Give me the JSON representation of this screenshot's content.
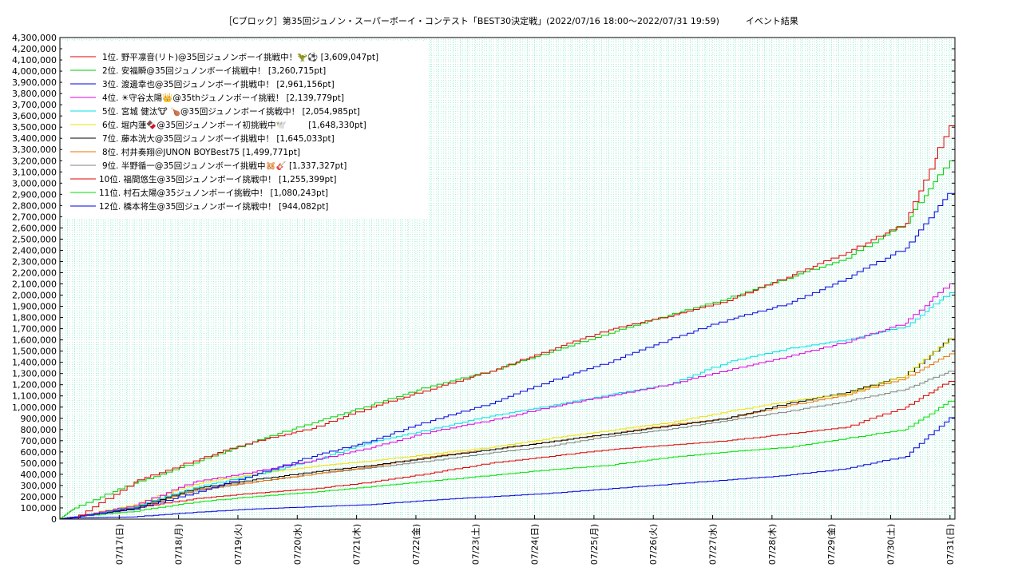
{
  "chart_data": {
    "type": "line",
    "title": "［Cブロック］第35回ジュノン・スーパーボーイ・コンテスト「BEST30決定戦」(2022/07/16 18:00〜2022/07/31 19:59)　　　イベント結果",
    "xlabel": "",
    "ylabel": "",
    "x_ticks": [
      "07/17(日)",
      "07/18(月)",
      "07/19(火)",
      "07/20(水)",
      "07/21(木)",
      "07/22(金)",
      "07/23(土)",
      "07/24(日)",
      "07/25(月)",
      "07/26(火)",
      "07/27(水)",
      "07/28(木)",
      "07/29(金)",
      "07/30(土)",
      "07/31(日)"
    ],
    "y_ticks": [
      "0",
      "100,000",
      "200,000",
      "300,000",
      "400,000",
      "500,000",
      "600,000",
      "700,000",
      "800,000",
      "900,000",
      "1,000,000",
      "1,100,000",
      "1,200,000",
      "1,300,000",
      "1,400,000",
      "1,500,000",
      "1,600,000",
      "1,700,000",
      "1,800,000",
      "1,900,000",
      "2,000,000",
      "2,100,000",
      "2,200,000",
      "2,300,000",
      "2,400,000",
      "2,500,000",
      "2,600,000",
      "2,700,000",
      "2,800,000",
      "2,900,000",
      "3,000,000",
      "3,100,000",
      "3,200,000",
      "3,300,000",
      "3,400,000",
      "3,500,000",
      "3,600,000",
      "3,700,000",
      "3,800,000",
      "3,900,000",
      "4,000,000",
      "4,100,000",
      "4,200,000",
      "4,300,000"
    ],
    "ylim": [
      0,
      4300000
    ],
    "grid": true,
    "legend_position": "top-left",
    "x_days": [
      0.25,
      1.25,
      2.25,
      3.25,
      4.25,
      5.25,
      6.25,
      7.25,
      8.25,
      9.25,
      10.25,
      11.25,
      12.25,
      13.25,
      14.25,
      15.083
    ],
    "series": [
      {
        "name": "1位. 野平凛音(リト)@35回ジュノンボーイ挑戦中！🦖⚽ [3,609,047pt]",
        "color": "#e00000",
        "values": [
          0,
          330000,
          520000,
          690000,
          810000,
          1000000,
          1160000,
          1320000,
          1510000,
          1690000,
          1810000,
          1950000,
          2160000,
          2380000,
          2640000,
          3609047
        ]
      },
      {
        "name": "2位. 安福瞬@35回ジュノンボーイ挑戦中！ [3,260,715pt]",
        "color": "#00cc00",
        "values": [
          100000,
          320000,
          500000,
          690000,
          860000,
          1020000,
          1190000,
          1320000,
          1490000,
          1660000,
          1820000,
          1970000,
          2150000,
          2330000,
          2640000,
          3260715
        ]
      },
      {
        "name": "3位. 渡邊幸也@35回ジュノンボーイ挑戦中！ [2,961,156pt]",
        "color": "#0000e0",
        "values": [
          20000,
          90000,
          230000,
          390000,
          560000,
          700000,
          880000,
          1030000,
          1230000,
          1400000,
          1600000,
          1780000,
          1920000,
          2150000,
          2420000,
          2961156
        ]
      },
      {
        "name": "4位. ☀守谷太陽👑@35thジュノンボーイ挑戦！ [2,139,779pt]",
        "color": "#e000e0",
        "values": [
          20000,
          120000,
          330000,
          420000,
          520000,
          640000,
          780000,
          880000,
          1000000,
          1100000,
          1200000,
          1330000,
          1450000,
          1580000,
          1750000,
          2139779
        ]
      },
      {
        "name": "5位. 宮城 健汰🐮 🍗@35回ジュノンボーイ挑戦中！ [2,054,985pt]",
        "color": "#00e0e0",
        "values": [
          20000,
          110000,
          280000,
          390000,
          520000,
          690000,
          800000,
          920000,
          1010000,
          1110000,
          1200000,
          1400000,
          1520000,
          1600000,
          1720000,
          2054985
        ]
      },
      {
        "name": "6位. 堀内蓮🍫@35回ジュノンボーイ初挑戦中🕊️ 　　 [1,648,330pt]",
        "color": "#f0e000",
        "values": [
          20000,
          130000,
          310000,
          400000,
          470000,
          520000,
          580000,
          640000,
          720000,
          790000,
          860000,
          960000,
          1050000,
          1120000,
          1280000,
          1648330
        ]
      },
      {
        "name": "7位. 藤本洸大@35回ジュノンボーイ挑戦中！ [1,645,033pt]",
        "color": "#000000",
        "values": [
          20000,
          100000,
          270000,
          350000,
          420000,
          480000,
          550000,
          620000,
          690000,
          760000,
          830000,
          900000,
          1030000,
          1130000,
          1280000,
          1645033
        ]
      },
      {
        "name": "8位. 村井奏翔＠JUNON BOYBest75 [1,499,771pt]",
        "color": "#f07000",
        "values": [
          20000,
          90000,
          260000,
          330000,
          400000,
          470000,
          560000,
          620000,
          690000,
          760000,
          840000,
          900000,
          1010000,
          1110000,
          1260000,
          1499771
        ]
      },
      {
        "name": "9位. 半野循一@35回ジュノンボーイ挑戦中🐹🎸 [1,337,327pt]",
        "color": "#808080",
        "values": [
          20000,
          110000,
          250000,
          330000,
          400000,
          460000,
          520000,
          590000,
          650000,
          740000,
          800000,
          880000,
          960000,
          1050000,
          1160000,
          1337327
        ]
      },
      {
        "name": "10位. 福間悠生@35回ジュノンボーイ挑戦中！ [1,255,399pt]",
        "color": "#e00000",
        "values": [
          20000,
          100000,
          180000,
          230000,
          270000,
          330000,
          410000,
          500000,
          560000,
          620000,
          660000,
          700000,
          760000,
          820000,
          1000000,
          1255399
        ]
      },
      {
        "name": "11位. 村石太陽@35ジュノンボーイ挑戦中！ [1,080,243pt]",
        "color": "#00e000",
        "values": [
          20000,
          70000,
          150000,
          200000,
          240000,
          290000,
          340000,
          390000,
          440000,
          480000,
          550000,
          600000,
          640000,
          720000,
          800000,
          1080243
        ]
      },
      {
        "name": "12位. 橋本将生@35回ジュノンボーイ挑戦中！ [944,082pt]",
        "color": "#0000e0",
        "values": [
          10000,
          20000,
          60000,
          90000,
          110000,
          130000,
          170000,
          200000,
          230000,
          270000,
          310000,
          350000,
          390000,
          450000,
          560000,
          944082
        ]
      }
    ]
  }
}
